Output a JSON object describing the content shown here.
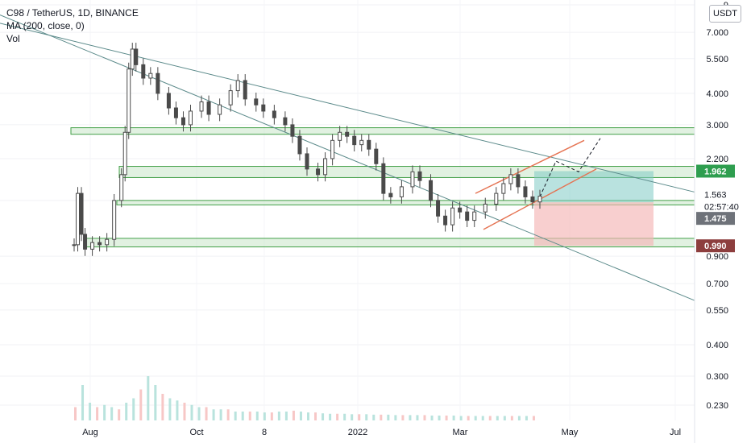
{
  "header": {
    "symbol_line": "C98 / TetherUS, 1D, BINANCE",
    "ma_line": "MA (200, close, 0)",
    "vol_line": "Vol"
  },
  "currency_button": "USDT",
  "colors": {
    "up": "#26a69a",
    "down": "#ef5350",
    "candle": "#4a4a4a",
    "zone_fill": "#c8e6c9",
    "zone_stroke": "#43a047",
    "trendline": "#5b8a8a",
    "channel": "#e57352",
    "target_box": "#80cbc4",
    "stop_box": "#f4b6b6",
    "price_label_green": "#2e9e4f",
    "price_label_red": "#8d3e3e",
    "price_label_gray": "#6e7279"
  },
  "chart_data": {
    "type": "candlestick",
    "title": "C98 / TetherUS, 1D, BINANCE",
    "y_scale": "log",
    "ylim": [
      0.2,
      9.0
    ],
    "y_ticks": [
      "9",
      "7.000",
      "5.500",
      "4.000",
      "3.000",
      "2.200",
      "1.500",
      "0.900",
      "0.700",
      "0.550",
      "0.400",
      "0.300",
      "0.230"
    ],
    "x_ticks": [
      "Aug",
      "Oct",
      "8",
      "2022",
      "Mar",
      "May",
      "Jul"
    ],
    "price_labels": [
      {
        "text": "1.962",
        "style": "green"
      },
      {
        "text": "1.563",
        "style": "plain"
      },
      {
        "text": "02:57:40",
        "style": "plain"
      },
      {
        "text": "1.475",
        "style": "gray"
      },
      {
        "text": "0.990",
        "style": "red"
      }
    ],
    "price_path": [
      [
        0,
        1.0
      ],
      [
        2,
        1.6
      ],
      [
        4,
        1.1
      ],
      [
        6,
        0.96
      ],
      [
        10,
        1.02
      ],
      [
        14,
        1.0
      ],
      [
        18,
        1.05
      ],
      [
        22,
        1.5
      ],
      [
        26,
        1.9
      ],
      [
        28,
        2.8
      ],
      [
        30,
        5.0
      ],
      [
        32,
        6.0
      ],
      [
        34,
        5.2
      ],
      [
        38,
        4.6
      ],
      [
        42,
        4.8
      ],
      [
        46,
        4.0
      ],
      [
        52,
        3.5
      ],
      [
        56,
        3.2
      ],
      [
        60,
        3.0
      ],
      [
        64,
        3.4
      ],
      [
        70,
        3.7
      ],
      [
        74,
        3.3
      ],
      [
        80,
        3.6
      ],
      [
        86,
        4.1
      ],
      [
        90,
        4.5
      ],
      [
        94,
        3.8
      ],
      [
        100,
        3.6
      ],
      [
        104,
        3.4
      ],
      [
        110,
        3.2
      ],
      [
        116,
        3.0
      ],
      [
        120,
        2.7
      ],
      [
        124,
        2.3
      ],
      [
        128,
        2.0
      ],
      [
        134,
        1.9
      ],
      [
        138,
        2.2
      ],
      [
        142,
        2.6
      ],
      [
        146,
        2.8
      ],
      [
        150,
        2.7
      ],
      [
        154,
        2.5
      ],
      [
        158,
        2.6
      ],
      [
        162,
        2.4
      ],
      [
        166,
        2.1
      ],
      [
        170,
        1.6
      ],
      [
        174,
        1.55
      ],
      [
        180,
        1.7
      ],
      [
        186,
        1.95
      ],
      [
        190,
        1.8
      ],
      [
        196,
        1.5
      ],
      [
        200,
        1.3
      ],
      [
        204,
        1.2
      ],
      [
        208,
        1.4
      ],
      [
        212,
        1.35
      ],
      [
        216,
        1.25
      ],
      [
        220,
        1.35
      ],
      [
        226,
        1.45
      ],
      [
        232,
        1.6
      ],
      [
        236,
        1.75
      ],
      [
        240,
        1.9
      ],
      [
        244,
        1.7
      ],
      [
        248,
        1.55
      ],
      [
        252,
        1.48
      ],
      [
        256,
        1.56
      ]
    ],
    "volume": [
      0.3,
      0.8,
      0.4,
      0.3,
      0.35,
      0.3,
      0.25,
      0.4,
      0.5,
      0.7,
      1.0,
      0.8,
      0.6,
      0.5,
      0.45,
      0.4,
      0.35,
      0.3,
      0.3,
      0.25,
      0.25,
      0.25,
      0.2,
      0.2,
      0.2,
      0.2,
      0.18,
      0.18,
      0.2,
      0.2,
      0.22,
      0.2,
      0.18,
      0.18,
      0.16,
      0.15,
      0.15,
      0.15,
      0.14,
      0.14,
      0.14,
      0.13,
      0.13,
      0.13,
      0.12,
      0.12,
      0.12,
      0.12,
      0.12,
      0.11,
      0.11,
      0.11,
      0.11,
      0.1,
      0.1,
      0.1,
      0.1,
      0.1,
      0.1,
      0.1,
      0.1,
      0.1,
      0.1,
      0.1
    ],
    "support_zones": [
      [
        2.75,
        2.92
      ],
      [
        1.85,
        2.05
      ],
      [
        1.44,
        1.5
      ],
      [
        0.98,
        1.06
      ]
    ],
    "trend_target": 2.6,
    "trade_box": {
      "entry": 1.475,
      "target": 1.962,
      "stop": 0.99
    }
  }
}
